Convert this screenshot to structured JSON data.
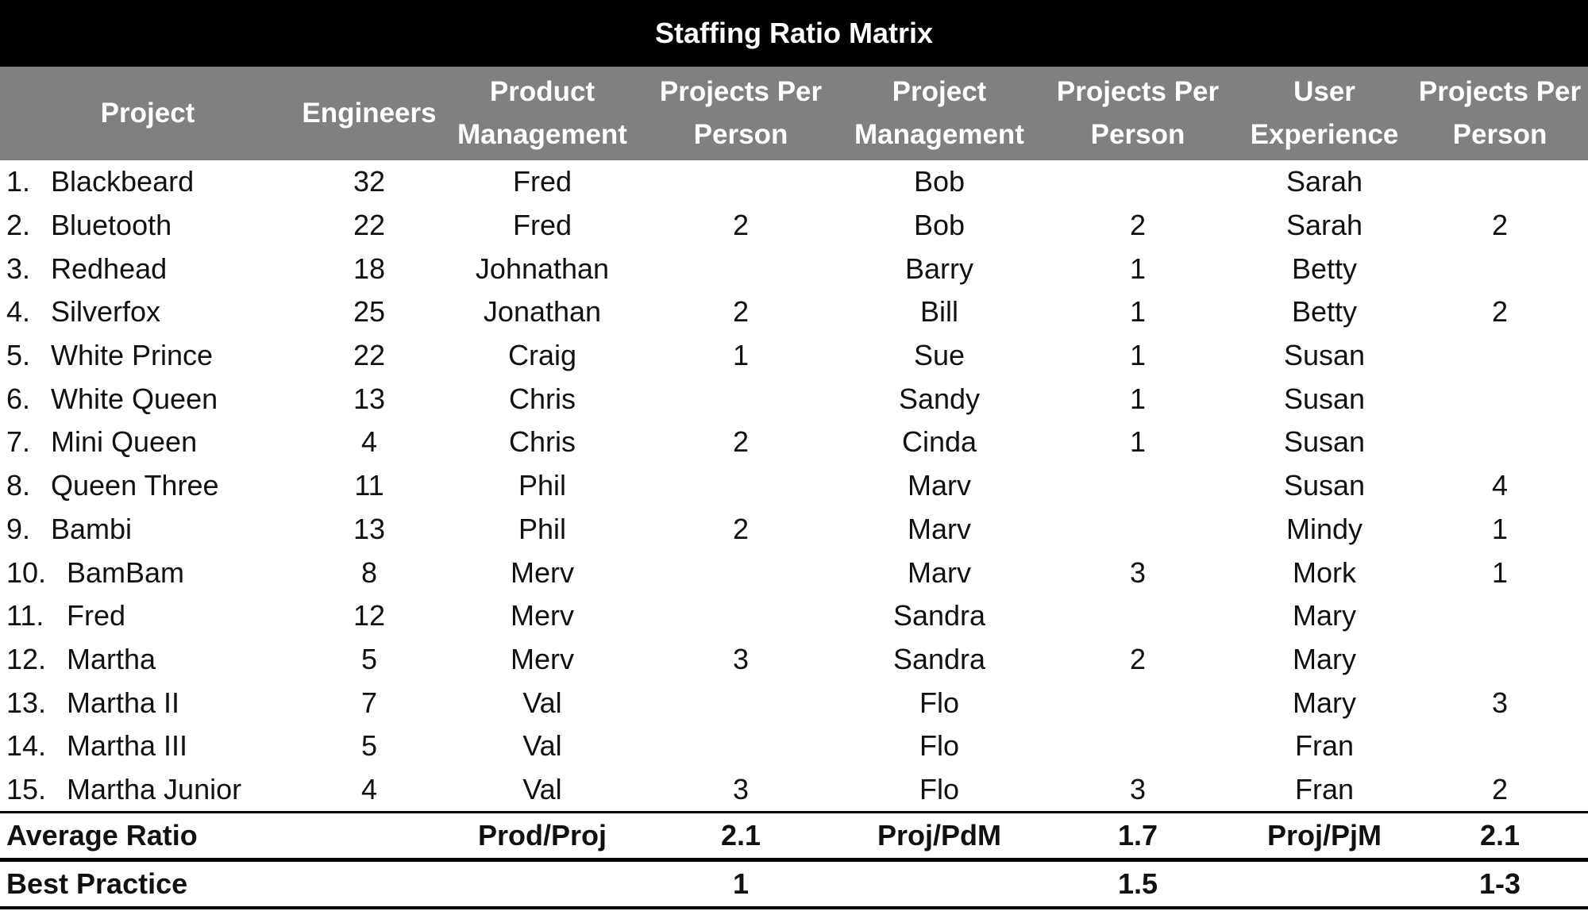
{
  "title": "Staffing Ratio Matrix",
  "columns": [
    [
      "Project"
    ],
    [
      "Engineers"
    ],
    [
      "Product",
      "Management"
    ],
    [
      "Projects Per",
      "Person"
    ],
    [
      "Project",
      "Management"
    ],
    [
      "Projects Per",
      "Person"
    ],
    [
      "User",
      "Experience"
    ],
    [
      "Projects Per",
      "Person"
    ]
  ],
  "rows": [
    [
      "1.",
      "Blackbeard",
      "32",
      "Fred",
      "",
      "Bob",
      "",
      "Sarah",
      ""
    ],
    [
      "2.",
      "Bluetooth",
      "22",
      "Fred",
      "2",
      "Bob",
      "2",
      "Sarah",
      "2"
    ],
    [
      "3.",
      "Redhead",
      "18",
      "Johnathan",
      "",
      "Barry",
      "1",
      "Betty",
      ""
    ],
    [
      "4.",
      "Silverfox",
      "25",
      "Jonathan",
      "2",
      "Bill",
      "1",
      "Betty",
      "2"
    ],
    [
      "5.",
      "White Prince",
      "22",
      "Craig",
      "1",
      "Sue",
      "1",
      "Susan",
      ""
    ],
    [
      "6.",
      "White Queen",
      "13",
      "Chris",
      "",
      "Sandy",
      "1",
      "Susan",
      ""
    ],
    [
      "7.",
      "Mini Queen",
      "4",
      "Chris",
      "2",
      "Cinda",
      "1",
      "Susan",
      ""
    ],
    [
      "8.",
      "Queen Three",
      "11",
      "Phil",
      "",
      "Marv",
      "",
      "Susan",
      "4"
    ],
    [
      "9.",
      "Bambi",
      "13",
      "Phil",
      "2",
      "Marv",
      "",
      "Mindy",
      "1"
    ],
    [
      "10.",
      "BamBam",
      "8",
      "Merv",
      "",
      "Marv",
      "3",
      "Mork",
      "1"
    ],
    [
      "11.",
      "Fred",
      "12",
      "Merv",
      "",
      "Sandra",
      "",
      "Mary",
      ""
    ],
    [
      "12.",
      "Martha",
      "5",
      "Merv",
      "3",
      "Sandra",
      "2",
      "Mary",
      ""
    ],
    [
      "13.",
      "Martha II",
      "7",
      "Val",
      "",
      "Flo",
      "",
      "Mary",
      "3"
    ],
    [
      "14.",
      "Martha III",
      "5",
      "Val",
      "",
      "Flo",
      "",
      "Fran",
      ""
    ],
    [
      "15.",
      "Martha Junior",
      "4",
      "Val",
      "3",
      "Flo",
      "3",
      "Fran",
      "2"
    ]
  ],
  "average": {
    "label": "Average Ratio",
    "cells": [
      "",
      "Prod/Proj",
      "2.1",
      "Proj/PdM",
      "1.7",
      "Proj/PjM",
      "2.1"
    ]
  },
  "best": {
    "label": "Best Practice",
    "cells": [
      "",
      "",
      "1",
      "",
      "1.5",
      "",
      "1-3"
    ]
  }
}
